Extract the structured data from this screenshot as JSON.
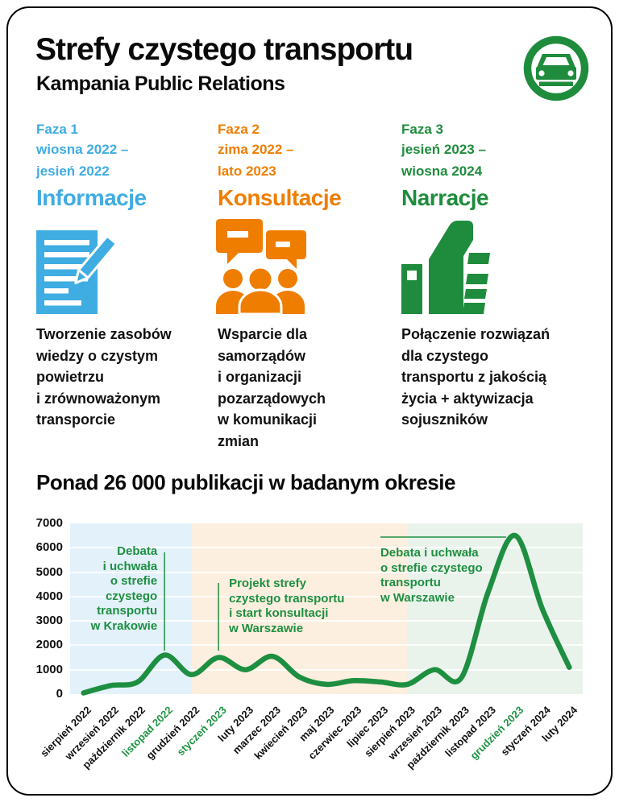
{
  "header": {
    "title": "Strefy czystego transportu",
    "subtitle": "Kampania Public Relations",
    "badge_icon": "car-sign-icon"
  },
  "colors": {
    "blue": "#3FACE2",
    "orange": "#EF7D00",
    "green": "#1E8C3C",
    "chart_line_green": "#1E8F41",
    "region_blue": "#E3F1FA",
    "region_orange": "#FCEFDF",
    "region_green": "#E9F3EC",
    "text": "#111111"
  },
  "phases": [
    {
      "label": "Faza 1",
      "period": "wiosna 2022 –\njesień 2022",
      "name": "Informacje",
      "icon": "document-pencil-icon",
      "description": "Tworzenie zasobów\nwiedzy o czystym\npowietrzu\ni zrównoważonym\ntransporcie",
      "color": "#3FACE2"
    },
    {
      "label": "Faza 2",
      "period": "zima 2022 –\nlato 2023",
      "name": "Konsultacje",
      "icon": "people-speech-bubbles-icon",
      "description": "Wsparcie dla\nsamorządów\ni organizacji\npozarządowych\nw komunikacji\nzmian",
      "color": "#EF7D00"
    },
    {
      "label": "Faza 3",
      "period": "jesień 2023 –\nwiosna 2024",
      "name": "Narracje",
      "icon": "thumb-up-icon",
      "description": "Połączenie rozwiązań\ndla czystego\ntransportu z jakością\nżycia + aktywizacja\nsojuszników",
      "color": "#1E8C3C"
    }
  ],
  "chart_section_title": "Ponad 26 000 publikacji w badanym okresie",
  "chart_data": {
    "type": "line",
    "title": "Ponad 26 000 publikacji w badanym okresie",
    "x": [
      "sierpień 2022",
      "wrzesień 2022",
      "październik 2022",
      "listopad 2022",
      "grudzień 2022",
      "styczeń 2023",
      "luty 2023",
      "marzec 2023",
      "kwiecień 2023",
      "maj 2023",
      "czerwiec 2023",
      "lipiec 2023",
      "sierpień 2023",
      "wrzesień 2023",
      "październik 2023",
      "listopad 2023",
      "grudzień 2023",
      "styczeń 2024",
      "luty 2024"
    ],
    "values": [
      50,
      350,
      500,
      1600,
      800,
      1500,
      1000,
      1550,
      700,
      400,
      550,
      500,
      400,
      1000,
      670,
      4200,
      6500,
      3500,
      1100
    ],
    "ylim": [
      0,
      7000
    ],
    "yticks": [
      0,
      1000,
      2000,
      3000,
      4000,
      5000,
      6000,
      7000
    ],
    "grid": true,
    "line_color": "#1E8F41",
    "highlighted_x_labels": [
      "listopad 2022",
      "styczeń 2023",
      "grudzień 2023"
    ],
    "regions": [
      {
        "phase": "Faza 1",
        "from_index": 0,
        "to_index": 4.5,
        "color": "#E3F1FA"
      },
      {
        "phase": "Faza 2",
        "from_index": 4.5,
        "to_index": 12.5,
        "color": "#FCEFDF"
      },
      {
        "phase": "Faza 3",
        "from_index": 12.5,
        "to_index": 19,
        "color": "#E9F3EC"
      }
    ],
    "annotations": [
      {
        "text": "Debata\ni uchwała\no strefie\nczystego\ntransportu\nw Krakowie",
        "month": "listopad 2022",
        "month_index": 3,
        "align": "right",
        "pointer": "vertical"
      },
      {
        "text": "Projekt strefy\nczystego transportu\ni start konsultacji\nw Warszawie",
        "month": "styczeń 2023",
        "month_index": 5,
        "align": "left",
        "pointer": "vertical"
      },
      {
        "text": "Debata i uchwała\no strefie czystego\ntransportu\nw Warszawie",
        "month": "grudzień 2023",
        "month_index": 16,
        "align": "left",
        "pointer": "horizontal-overline"
      }
    ]
  }
}
